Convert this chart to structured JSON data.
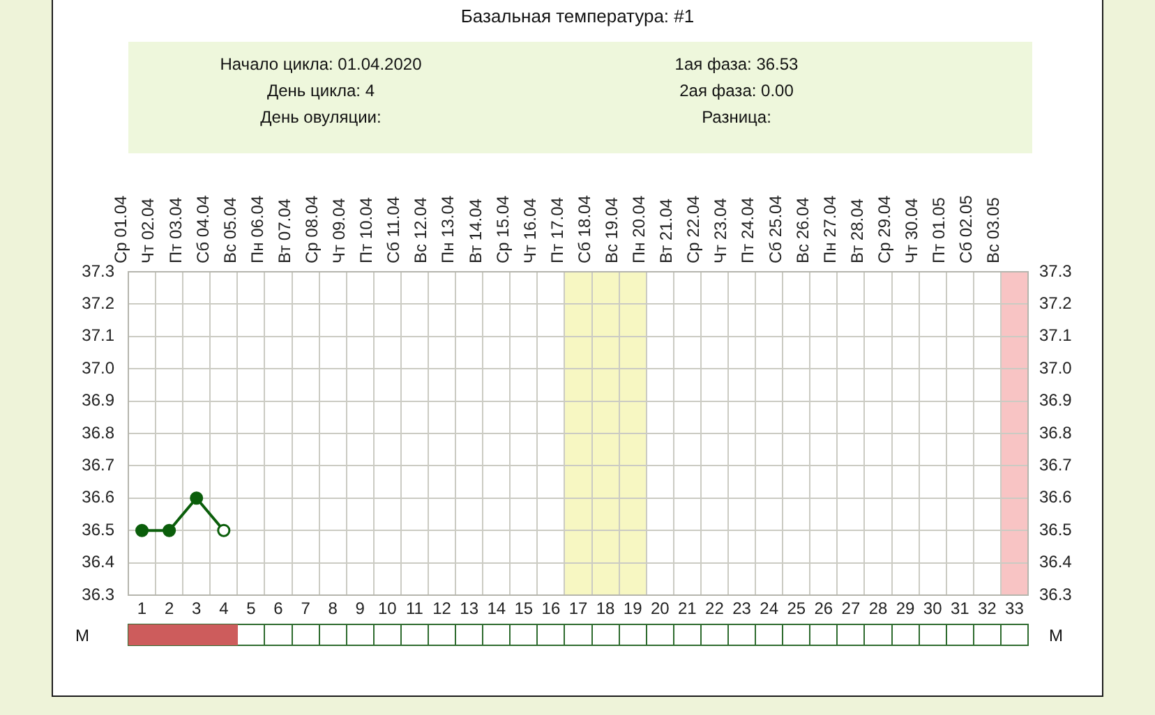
{
  "chart_data": [
    {
      "type": "line",
      "title": "Базальная температура: #1",
      "annotations": [
        "Начало цикла: 01.04.2020",
        "1ая фаза: 36.53",
        "День цикла: 4",
        "2ая фаза: 0.00",
        "День овуляции:",
        "Разница:"
      ],
      "x": [
        1,
        2,
        3,
        4
      ],
      "values": [
        36.5,
        36.5,
        36.6,
        36.5
      ],
      "color": "#0b5e0b",
      "colors": [
        "#0b5e0b",
        "#0b5e0b",
        "#0b5e0b",
        "#ffffff"
      ],
      "xlim": [
        0.5,
        33.5
      ],
      "xticks": [
        1,
        2,
        3,
        4,
        5,
        6,
        7,
        8,
        9,
        10,
        11,
        12,
        13,
        14,
        15,
        16,
        17,
        18,
        19,
        20,
        21,
        22,
        23,
        24,
        25,
        26,
        27,
        28,
        29,
        30,
        31,
        32,
        33
      ],
      "x2lim": [
        "2020-04-01",
        "2020-05-03"
      ],
      "x2ticks": [
        {
          "value": "2020-04-01",
          "label": "Ср 01.04"
        },
        {
          "value": "2020-04-02",
          "label": "Чт 02.04"
        },
        {
          "value": "2020-04-03",
          "label": "Пт 03.04"
        },
        {
          "value": "2020-04-04",
          "label": "Сб 04.04"
        },
        {
          "value": "2020-04-05",
          "label": "Вс 05.04"
        },
        {
          "value": "2020-04-06",
          "label": "Пн 06.04"
        },
        {
          "value": "2020-04-07",
          "label": "Вт 07.04"
        },
        {
          "value": "2020-04-08",
          "label": "Ср 08.04"
        },
        {
          "value": "2020-04-09",
          "label": "Чт 09.04"
        },
        {
          "value": "2020-04-10",
          "label": "Пт 10.04"
        },
        {
          "value": "2020-04-11",
          "label": "Сб 11.04"
        },
        {
          "value": "2020-04-12",
          "label": "Вс 12.04"
        },
        {
          "value": "2020-04-13",
          "label": "Пн 13.04"
        },
        {
          "value": "2020-04-14",
          "label": "Вт 14.04"
        },
        {
          "value": "2020-04-15",
          "label": "Ср 15.04"
        },
        {
          "value": "2020-04-16",
          "label": "Чт 16.04"
        },
        {
          "value": "2020-04-17",
          "label": "Пт 17.04"
        },
        {
          "value": "2020-04-18",
          "label": "Сб 18.04"
        },
        {
          "value": "2020-04-19",
          "label": "Вс 19.04"
        },
        {
          "value": "2020-04-20",
          "label": "Пн 20.04"
        },
        {
          "value": "2020-04-21",
          "label": "Вт 21.04"
        },
        {
          "value": "2020-04-22",
          "label": "Ср 22.04"
        },
        {
          "value": "2020-04-23",
          "label": "Чт 23.04"
        },
        {
          "value": "2020-04-24",
          "label": "Пт 24.04"
        },
        {
          "value": "2020-04-25",
          "label": "Сб 25.04"
        },
        {
          "value": "2020-04-26",
          "label": "Вс 26.04"
        },
        {
          "value": "2020-04-27",
          "label": "Пн 27.04"
        },
        {
          "value": "2020-04-28",
          "label": "Вт 28.04"
        },
        {
          "value": "2020-04-29",
          "label": "Ср 29.04"
        },
        {
          "value": "2020-04-30",
          "label": "Чт 30.04"
        },
        {
          "value": "2020-05-01",
          "label": "Пт 01.05"
        },
        {
          "value": "2020-05-02",
          "label": "Сб 02.05"
        },
        {
          "value": "2020-05-03",
          "label": "Вс 03.05"
        }
      ],
      "ylim": [
        36.3,
        37.3
      ],
      "yticks": [
        36.3,
        36.4,
        36.5,
        36.6,
        36.7,
        36.8,
        36.9,
        {
          "value": 37,
          "label": "37.0"
        },
        37.1,
        37.2,
        37.3
      ],
      "y2lim": [
        36.3,
        37.3
      ],
      "y2ticks": [
        36.3,
        36.4,
        36.5,
        36.6,
        36.7,
        36.8,
        36.9,
        {
          "value": 37,
          "label": "37.0"
        },
        37.1,
        37.2,
        37.3
      ],
      "bands": [
        {
          "axis": "x",
          "from": 16.5,
          "to": 19.5,
          "color": "#f7f7c2"
        },
        {
          "axis": "x",
          "from": 32.5,
          "to": 33.5,
          "color": "#f8c4c4"
        }
      ],
      "grid": true,
      "marker": "circle",
      "line_style": "solid"
    },
    {
      "type": "bar",
      "orientation": "horizontal",
      "categories": [
        null
      ],
      "values": [
        4
      ],
      "base": [
        0.5
      ],
      "color": "#cd5c5c",
      "xlim": [
        0.5,
        33.5
      ],
      "xticks": [
        1,
        2,
        3,
        4,
        5,
        6,
        7,
        8,
        9,
        10,
        11,
        12,
        13,
        14,
        15,
        16,
        17,
        18,
        19,
        20,
        21,
        22,
        23,
        24,
        25,
        26,
        27,
        28,
        29,
        30,
        31,
        32,
        33
      ],
      "tick_labels": false,
      "grid": "x",
      "ylabel": "M",
      "y2label": "M"
    }
  ]
}
